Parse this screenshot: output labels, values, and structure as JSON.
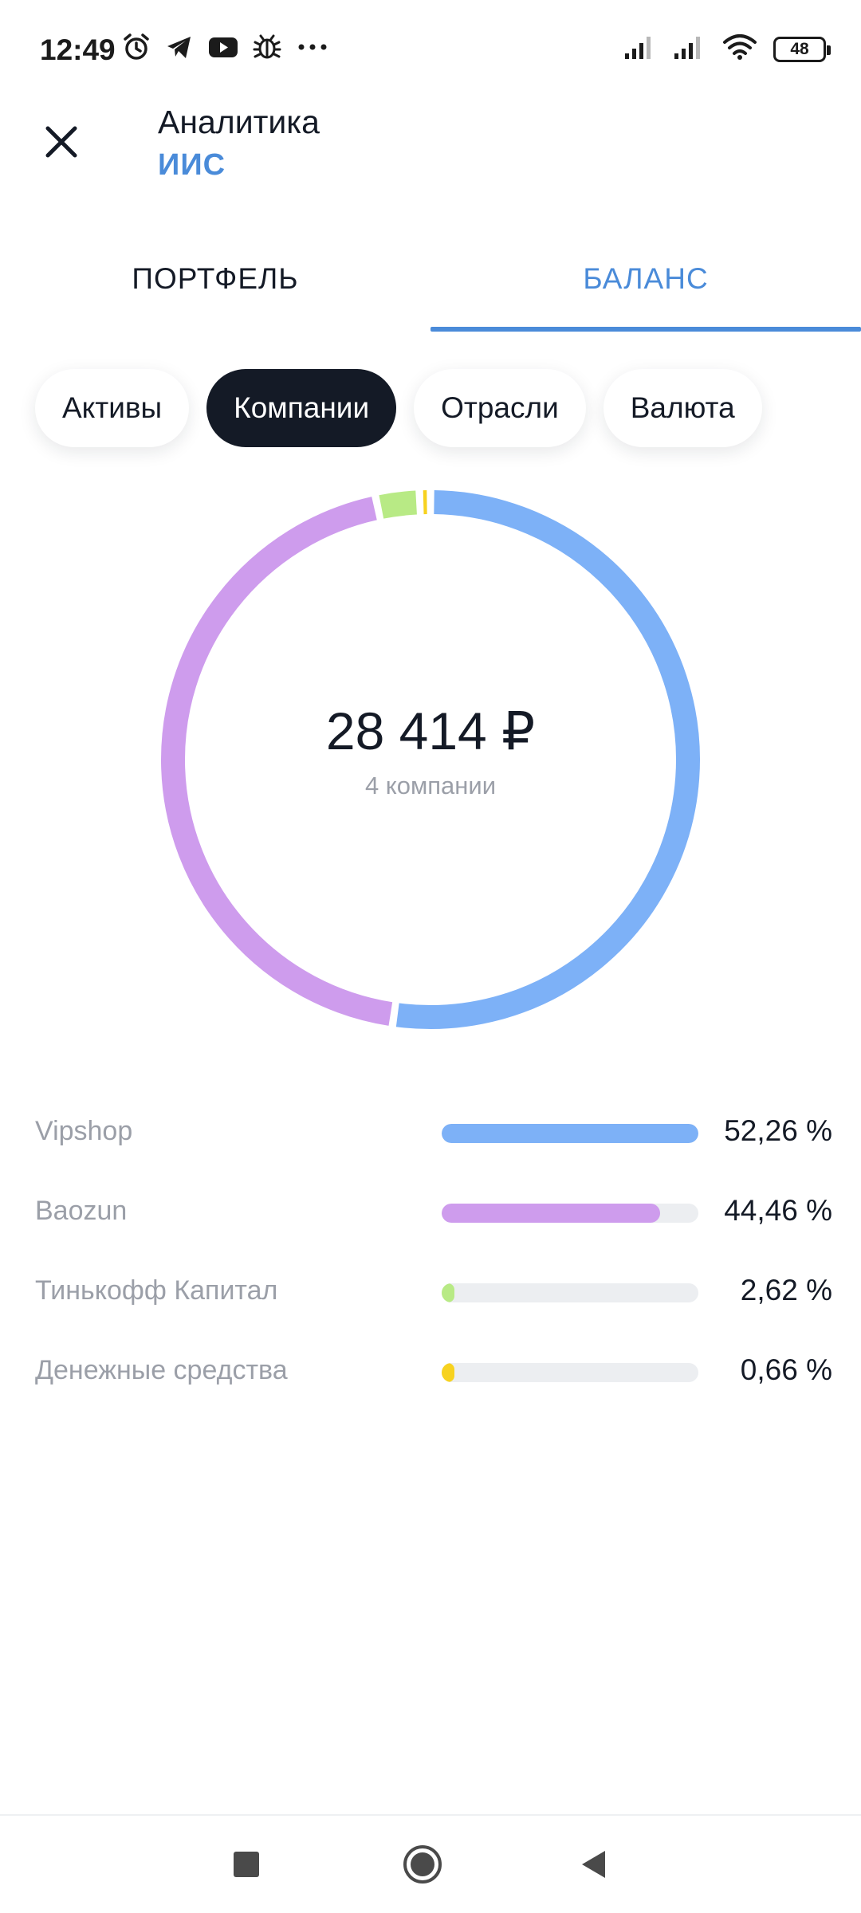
{
  "status_bar": {
    "time": "12:49",
    "battery": "48",
    "left_icons": [
      "alarm-icon",
      "telegram-icon",
      "youtube-icon",
      "bug-icon",
      "more-dots-icon"
    ],
    "right_icons": [
      "signal-icon",
      "signal-icon",
      "wifi-icon",
      "battery-icon"
    ]
  },
  "header": {
    "title": "Аналитика",
    "subtitle": "ИИС",
    "close_icon": "close-icon"
  },
  "tabs": [
    {
      "label": "ПОРТФЕЛЬ",
      "active": false
    },
    {
      "label": "БАЛАНС",
      "active": true
    }
  ],
  "filters": [
    {
      "label": "Активы",
      "active": false
    },
    {
      "label": "Компании",
      "active": true
    },
    {
      "label": "Отрасли",
      "active": false
    },
    {
      "label": "Валюта",
      "active": false
    }
  ],
  "summary": {
    "total": "28 414 ₽",
    "subtitle": "4 компании"
  },
  "chart_data": {
    "type": "pie",
    "categories": [
      "Vipshop",
      "Baozun",
      "Тинькофф Капитал",
      "Денежные средства"
    ],
    "values": [
      52.26,
      44.46,
      2.62,
      0.66
    ],
    "value_labels": [
      "52,26 %",
      "44,46 %",
      "2,62 %",
      "0,66 %"
    ],
    "colors": [
      "#7db1f7",
      "#ce9ced",
      "#b8ea85",
      "#f7d21f"
    ],
    "center_label": "28 414 ₽",
    "center_sublabel": "4 компании"
  },
  "nav": {
    "icons": [
      "recents-square-icon",
      "home-circle-icon",
      "back-triangle-icon"
    ]
  }
}
